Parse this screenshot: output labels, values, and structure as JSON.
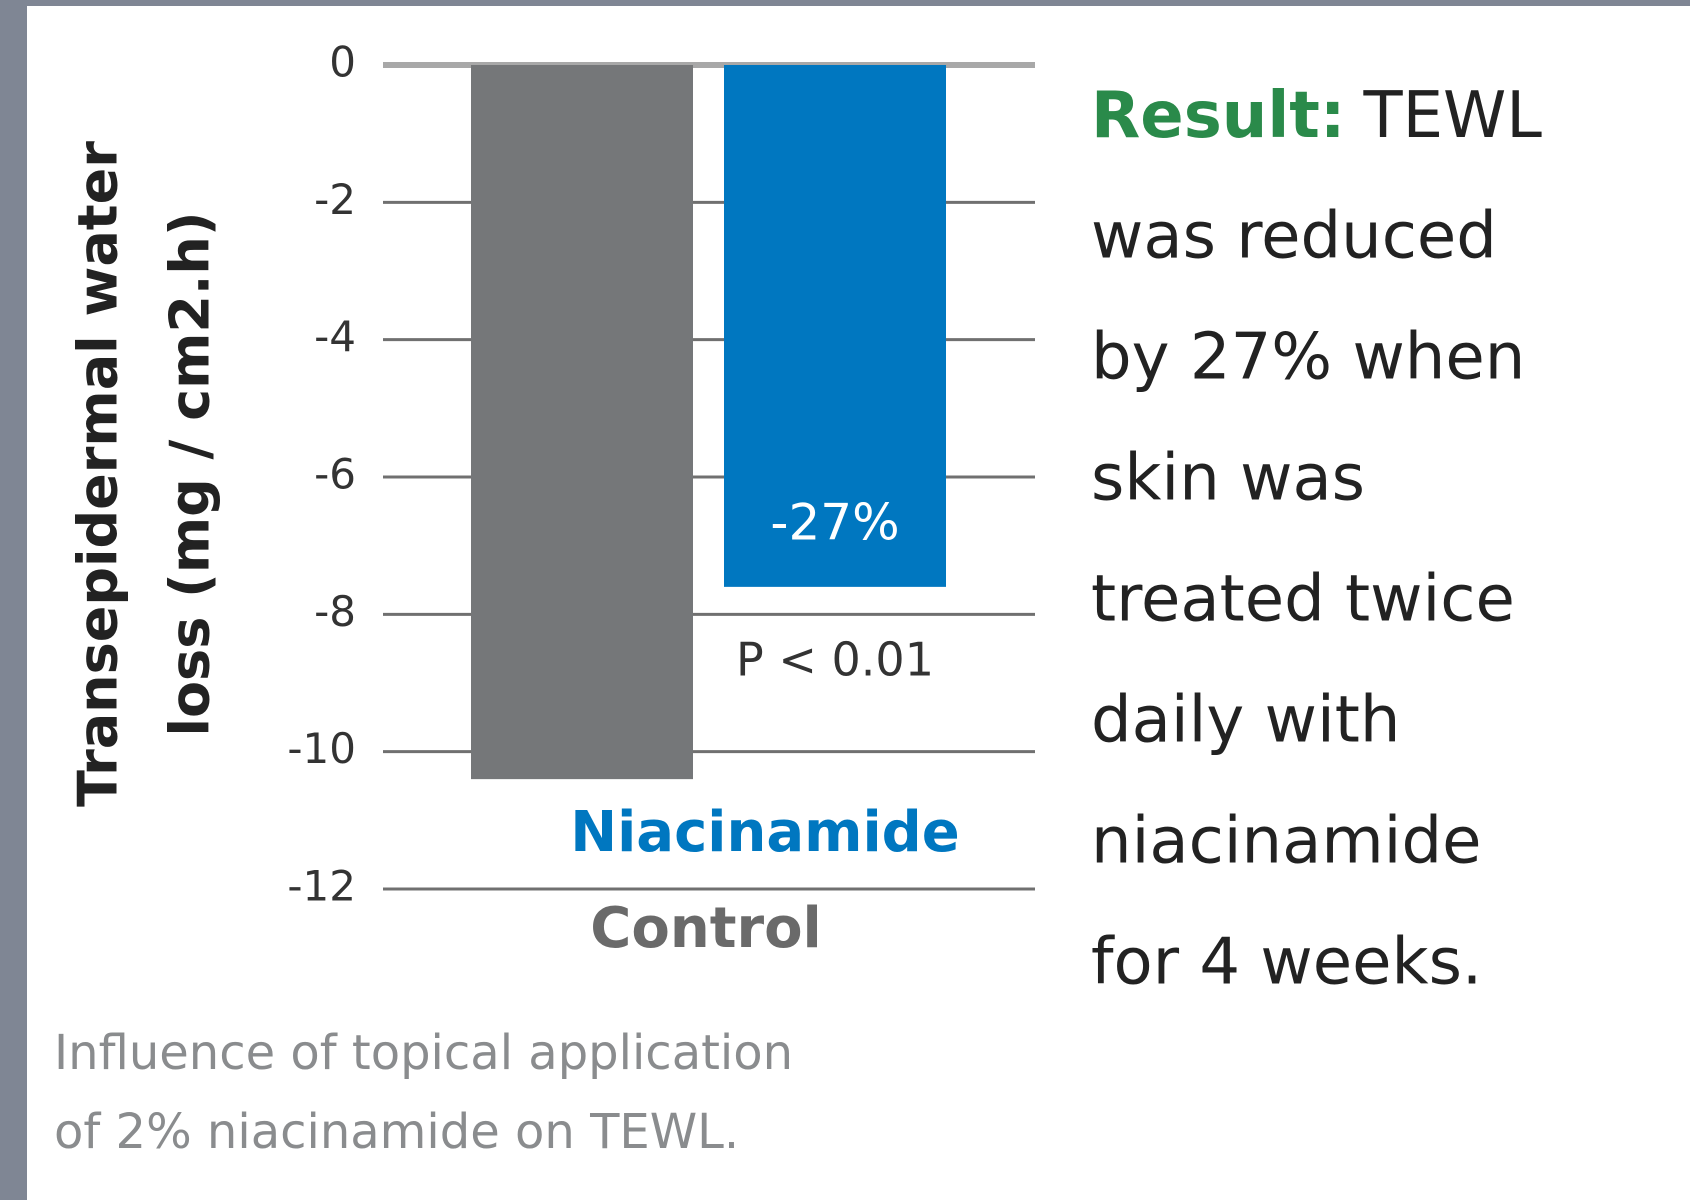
{
  "chart_data": {
    "type": "bar",
    "ylabel": [
      "Transepidermal water",
      "loss (mg / cm2.h)"
    ],
    "categories": [
      "Control",
      "Niacinamide"
    ],
    "series": [
      {
        "name": "Control",
        "color": "#757779",
        "values": [
          -10.4,
          null
        ]
      },
      {
        "name": "Niacinamide",
        "color": "#0077c0",
        "values": [
          null,
          -7.6
        ]
      }
    ],
    "ylim": [
      -12,
      0
    ],
    "yticks": [
      0,
      -2,
      -4,
      -6,
      -8,
      -10,
      -12
    ],
    "grid": true,
    "annotations": [
      "-27%",
      "P < 0.01"
    ],
    "result_label": "Result:",
    "result_lines": [
      "TEWL",
      "was reduced",
      "by 27% when",
      "skin was",
      "treated twice",
      "daily with",
      "niacinamide",
      "for 4 weeks."
    ],
    "caption": [
      "Influence of topical application",
      "of 2% niacinamide on TEWL."
    ]
  }
}
